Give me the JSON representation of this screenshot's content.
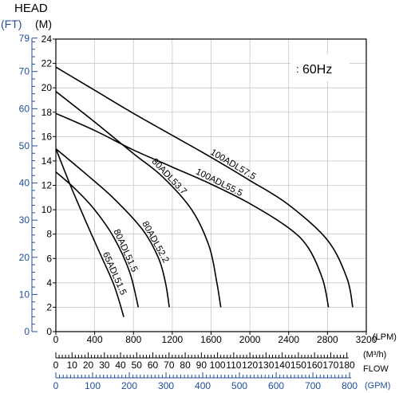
{
  "chart_data": {
    "type": "line",
    "title": "",
    "freq_label": "60Hz",
    "head_label": "HEAD",
    "ft_unit": "(FT)",
    "m_unit": "(M)",
    "lpm_unit": "(LPM)",
    "m3h_unit": "(M³/h)",
    "flow_label": "FLOW",
    "gpm_unit": "(GPM)",
    "ylim_m": [
      0,
      24
    ],
    "xlim_lpm": [
      0,
      3200
    ],
    "y_ticks_m": [
      "0",
      "2",
      "4",
      "6",
      "8",
      "10",
      "12",
      "14",
      "16",
      "18",
      "20",
      "22",
      "24"
    ],
    "y_ticks_ft": [
      "0",
      "10",
      "20",
      "30",
      "40",
      "50",
      "60",
      "70",
      "79"
    ],
    "x_ticks_lpm": [
      "0",
      "400",
      "800",
      "1200",
      "1600",
      "2000",
      "2400",
      "2800",
      "3200"
    ],
    "x_ticks_m3h": [
      "0",
      "10",
      "20",
      "30",
      "40",
      "50",
      "60",
      "70",
      "80",
      "90",
      "100",
      "110",
      "120",
      "130",
      "140",
      "150",
      "160",
      "170",
      "180"
    ],
    "x_ticks_gpm": [
      "0",
      "100",
      "200",
      "300",
      "400",
      "500",
      "600",
      "700",
      "800"
    ],
    "grid": true,
    "series": [
      {
        "name": "100ADL57.5",
        "color": "#000000",
        "points": [
          [
            0,
            21.7
          ],
          [
            400,
            19.8
          ],
          [
            800,
            17.9
          ],
          [
            1200,
            16.1
          ],
          [
            1600,
            14.3
          ],
          [
            2000,
            12.4
          ],
          [
            2400,
            10.4
          ],
          [
            2800,
            7.5
          ],
          [
            3000,
            4.4
          ],
          [
            3060,
            2.0
          ]
        ]
      },
      {
        "name": "100ADL55.5",
        "color": "#000000",
        "points": [
          [
            0,
            17.9
          ],
          [
            400,
            16.5
          ],
          [
            800,
            14.9
          ],
          [
            1200,
            13.5
          ],
          [
            1600,
            12.1
          ],
          [
            2000,
            10.5
          ],
          [
            2400,
            8.5
          ],
          [
            2600,
            6.9
          ],
          [
            2750,
            4.3
          ],
          [
            2810,
            2.0
          ]
        ]
      },
      {
        "name": "80ADL53.7",
        "color": "#000000",
        "points": [
          [
            0,
            19.7
          ],
          [
            400,
            17.2
          ],
          [
            800,
            14.6
          ],
          [
            1100,
            12.7
          ],
          [
            1400,
            10.0
          ],
          [
            1580,
            7.0
          ],
          [
            1660,
            4.0
          ],
          [
            1700,
            2.0
          ]
        ]
      },
      {
        "name": "80ADL52.2",
        "color": "#000000",
        "points": [
          [
            0,
            15.0
          ],
          [
            300,
            13.0
          ],
          [
            600,
            10.9
          ],
          [
            900,
            8.3
          ],
          [
            1060,
            6.0
          ],
          [
            1130,
            4.0
          ],
          [
            1170,
            2.0
          ]
        ]
      },
      {
        "name": "80ADL51.5",
        "color": "#000000",
        "points": [
          [
            0,
            13.1
          ],
          [
            200,
            11.7
          ],
          [
            400,
            10.0
          ],
          [
            600,
            7.7
          ],
          [
            760,
            4.9
          ],
          [
            850,
            2.0
          ]
        ]
      },
      {
        "name": "65ADL51.5",
        "color": "#000000",
        "points": [
          [
            0,
            15.0
          ],
          [
            150,
            12.0
          ],
          [
            300,
            9.2
          ],
          [
            450,
            6.5
          ],
          [
            600,
            3.8
          ],
          [
            700,
            1.2
          ]
        ]
      }
    ]
  }
}
